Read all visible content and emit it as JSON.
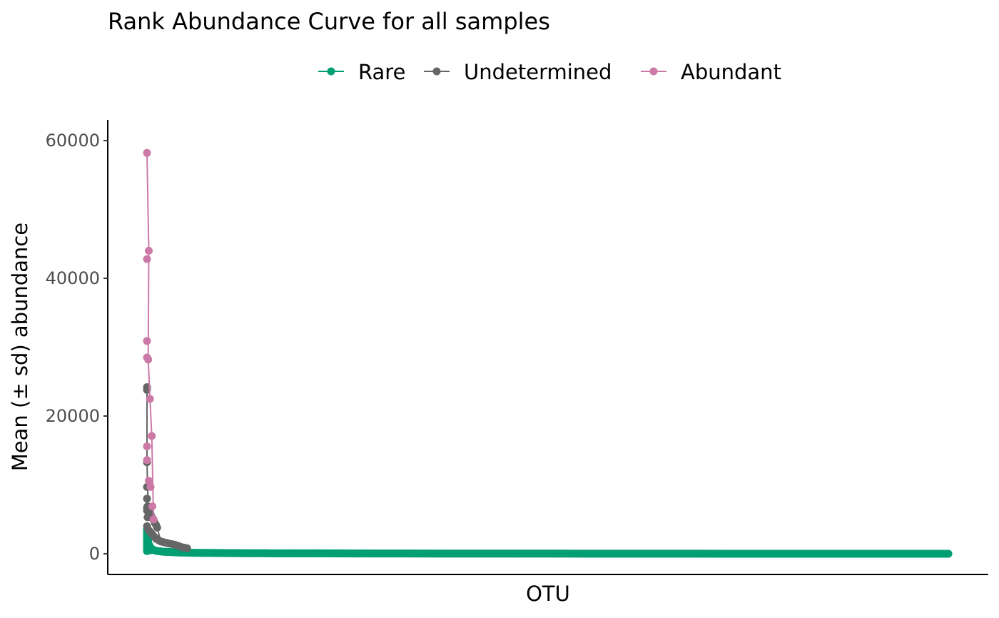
{
  "chart_data": {
    "type": "scatter",
    "title": "Rank Abundance Curve for all samples",
    "xlabel": "OTU",
    "ylabel": "Mean (± sd) abundance",
    "ylim": [
      -3000,
      63000
    ],
    "yticks": [
      0,
      20000,
      40000,
      60000
    ],
    "x_ticks_shown": false,
    "grid": false,
    "legend_position": "top",
    "series": [
      {
        "name": "Rare",
        "color": "#009E73",
        "points": [
          [
            1,
            3600
          ],
          [
            1,
            3300
          ],
          [
            1,
            3000
          ],
          [
            1,
            2700
          ],
          [
            1,
            2400
          ],
          [
            1,
            2100
          ],
          [
            1,
            1800
          ],
          [
            1,
            1500
          ],
          [
            1,
            1200
          ],
          [
            1,
            900
          ],
          [
            1,
            600
          ],
          [
            1,
            400
          ],
          [
            2,
            2600
          ],
          [
            2,
            1600
          ],
          [
            2,
            800
          ],
          [
            3,
            1900
          ],
          [
            3,
            1000
          ],
          [
            3,
            500
          ],
          [
            4,
            1400
          ],
          [
            4,
            700
          ],
          [
            5,
            1200
          ],
          [
            5,
            600
          ],
          [
            6,
            1000
          ],
          [
            6,
            500
          ],
          [
            7,
            900
          ],
          [
            8,
            800
          ],
          [
            9,
            700
          ],
          [
            10,
            650
          ],
          [
            11,
            600
          ],
          [
            12,
            560
          ],
          [
            13,
            520
          ],
          [
            14,
            490
          ],
          [
            15,
            460
          ],
          [
            17,
            430
          ],
          [
            19,
            400
          ],
          [
            22,
            370
          ],
          [
            25,
            340
          ],
          [
            28,
            310
          ],
          [
            32,
            290
          ],
          [
            36,
            270
          ],
          [
            40,
            250
          ],
          [
            45,
            230
          ],
          [
            50,
            210
          ],
          [
            56,
            195
          ],
          [
            62,
            180
          ],
          [
            70,
            165
          ],
          [
            80,
            150
          ],
          [
            90,
            138
          ],
          [
            100,
            125
          ],
          [
            115,
            115
          ],
          [
            130,
            105
          ],
          [
            150,
            96
          ],
          [
            170,
            88
          ],
          [
            200,
            80
          ],
          [
            240,
            72
          ],
          [
            280,
            64
          ],
          [
            330,
            57
          ],
          [
            380,
            50
          ],
          [
            440,
            44
          ],
          [
            500,
            38
          ],
          [
            560,
            33
          ],
          [
            620,
            28
          ],
          [
            680,
            24
          ],
          [
            740,
            20
          ],
          [
            800,
            16
          ],
          [
            860,
            13
          ],
          [
            920,
            10
          ],
          [
            980,
            7
          ],
          [
            1040,
            5
          ],
          [
            1100,
            3
          ],
          [
            1160,
            2
          ],
          [
            1220,
            1
          ],
          [
            1280,
            1
          ],
          [
            1340,
            1
          ]
        ]
      },
      {
        "name": "Undetermined",
        "color": "#666666",
        "points": [
          [
            1,
            24200
          ],
          [
            1,
            23800
          ],
          [
            1,
            13300
          ],
          [
            1,
            9700
          ],
          [
            1,
            8000
          ],
          [
            1,
            6700
          ],
          [
            1,
            6300
          ],
          [
            1,
            4000
          ],
          [
            2,
            6900
          ],
          [
            2,
            5300
          ],
          [
            3,
            6100
          ],
          [
            4,
            6000
          ],
          [
            5,
            5900
          ],
          [
            6,
            5700
          ],
          [
            7,
            5800
          ],
          [
            8,
            5500
          ],
          [
            10,
            5200
          ],
          [
            12,
            4900
          ],
          [
            14,
            4500
          ],
          [
            16,
            4200
          ],
          [
            18,
            3800
          ],
          [
            3,
            3500
          ],
          [
            5,
            3300
          ],
          [
            8,
            3000
          ],
          [
            10,
            2800
          ],
          [
            13,
            2500
          ],
          [
            16,
            2200
          ],
          [
            20,
            2000
          ],
          [
            24,
            1800
          ],
          [
            28,
            1700
          ],
          [
            33,
            1600
          ],
          [
            38,
            1500
          ],
          [
            43,
            1400
          ],
          [
            48,
            1300
          ],
          [
            53,
            1150
          ],
          [
            58,
            1000
          ],
          [
            63,
            900
          ],
          [
            68,
            800
          ]
        ],
        "line": [
          [
            1,
            24200
          ],
          [
            1,
            13300
          ],
          [
            2,
            9700
          ],
          [
            3,
            6900
          ],
          [
            4,
            6100
          ],
          [
            6,
            5900
          ],
          [
            8,
            5600
          ],
          [
            10,
            5200
          ],
          [
            14,
            4500
          ],
          [
            18,
            3800
          ],
          [
            24,
            1800
          ],
          [
            33,
            1600
          ],
          [
            43,
            1400
          ],
          [
            53,
            1150
          ],
          [
            68,
            800
          ]
        ]
      },
      {
        "name": "Abundant",
        "color": "#CC79A7",
        "points": [
          [
            1,
            58200
          ],
          [
            1,
            42800
          ],
          [
            1,
            30900
          ],
          [
            1,
            28500
          ],
          [
            1,
            15600
          ],
          [
            1,
            13600
          ],
          [
            4,
            44000
          ],
          [
            3,
            28200
          ],
          [
            4,
            10600
          ],
          [
            6,
            22500
          ],
          [
            7,
            9700
          ],
          [
            9,
            17100
          ],
          [
            10,
            6900
          ],
          [
            12,
            5000
          ]
        ],
        "line": [
          [
            1,
            58200
          ],
          [
            4,
            44000
          ],
          [
            3,
            28200
          ],
          [
            6,
            22500
          ],
          [
            9,
            17100
          ],
          [
            12,
            5000
          ]
        ]
      }
    ]
  }
}
